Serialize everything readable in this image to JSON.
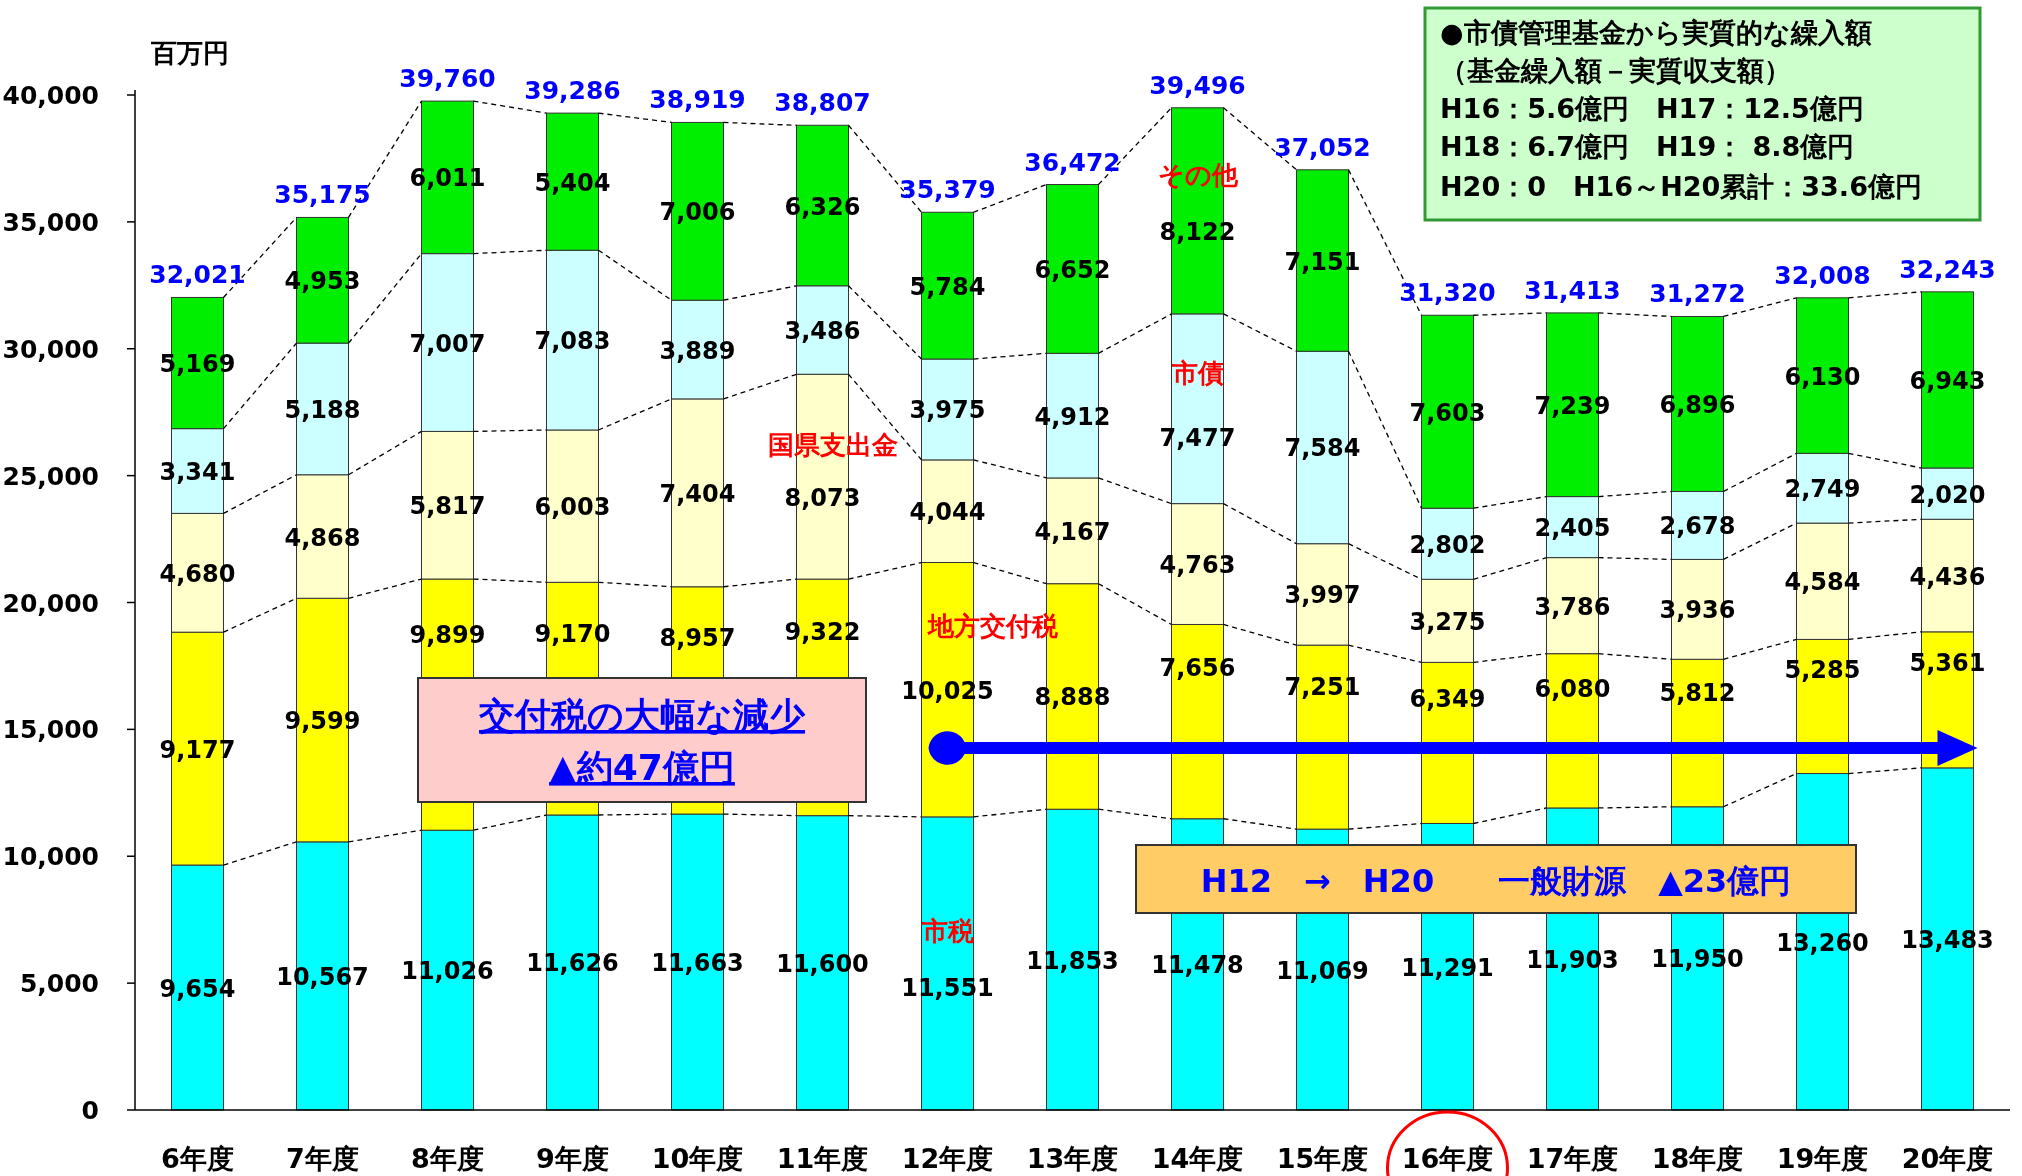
{
  "chart_data": {
    "type": "bar",
    "stacked": true,
    "ylabel": "百万円",
    "categories": [
      "6年度",
      "7年度",
      "8年度",
      "9年度",
      "10年度",
      "11年度",
      "12年度",
      "13年度",
      "14年度",
      "15年度",
      "16年度",
      "17年度",
      "18年度",
      "19年度",
      "20年度"
    ],
    "ylim": [
      0,
      40000
    ],
    "yticks": [
      0,
      {
        "value": 5000,
        "label": "5,000"
      },
      {
        "value": 10000,
        "label": "10,000"
      },
      {
        "value": 15000,
        "label": "15,000"
      },
      {
        "value": 20000,
        "label": "20,000"
      },
      {
        "value": 25000,
        "label": "25,000"
      },
      {
        "value": 30000,
        "label": "30,000"
      },
      {
        "value": 35000,
        "label": "35,000"
      },
      {
        "value": 40000,
        "label": "40,000"
      }
    ],
    "series": [
      {
        "name": "市税",
        "color": "#00ffff",
        "values": [
          9654,
          10567,
          11026,
          11626,
          11663,
          11600,
          11551,
          11853,
          11478,
          11069,
          11291,
          11903,
          11950,
          13260,
          13483
        ],
        "value_labels": [
          "9,654",
          "10,567",
          "11,026",
          "11,626",
          "11,663",
          "11,600",
          "11,551",
          "11,853",
          "11,478",
          "11,069",
          "11,291",
          "11,903",
          "11,950",
          "13,260",
          "13,483"
        ]
      },
      {
        "name": "地方交付税",
        "color": "#ffff00",
        "values": [
          9177,
          9599,
          9899,
          9170,
          8957,
          9322,
          10025,
          8888,
          7656,
          7251,
          6349,
          6080,
          5812,
          5285,
          5361
        ],
        "value_labels": [
          "9,177",
          "9,599",
          "9,899",
          "9,170",
          "8,957",
          "9,322",
          "10,025",
          "8,888",
          "7,656",
          "7,251",
          "6,349",
          "6,080",
          "5,812",
          "5,285",
          "5,361"
        ]
      },
      {
        "name": "国県支出金",
        "color": "#ffffcc",
        "values": [
          4680,
          4868,
          5817,
          6003,
          7404,
          8073,
          4044,
          4167,
          4763,
          3997,
          3275,
          3786,
          3936,
          4584,
          4436
        ],
        "value_labels": [
          "4,680",
          "4,868",
          "5,817",
          "6,003",
          "7,404",
          "8,073",
          "4,044",
          "4,167",
          "4,763",
          "3,997",
          "3,275",
          "3,786",
          "3,936",
          "4,584",
          "4,436"
        ]
      },
      {
        "name": "市債",
        "color": "#ccffff",
        "values": [
          3341,
          5188,
          7007,
          7083,
          3889,
          3486,
          3975,
          4912,
          7477,
          7584,
          2802,
          2405,
          2678,
          2749,
          2020
        ],
        "value_labels": [
          "3,341",
          "5,188",
          "7,007",
          "7,083",
          "3,889",
          "3,486",
          "3,975",
          "4,912",
          "7,477",
          "7,584",
          "2,802",
          "2,405",
          "2,678",
          "2,749",
          "2,020"
        ]
      },
      {
        "name": "その他",
        "color": "#00ee00",
        "values": [
          5169,
          4953,
          6011,
          5404,
          7006,
          6326,
          5784,
          6652,
          8122,
          7151,
          7603,
          7239,
          6896,
          6130,
          6943
        ],
        "value_labels": [
          "5,169",
          "4,953",
          "6,011",
          "5,404",
          "7,006",
          "6,326",
          "5,784",
          "6,652",
          "8,122",
          "7,151",
          "7,603",
          "7,239",
          "6,896",
          "6,130",
          "6,943"
        ]
      }
    ],
    "totals": [
      "32,021",
      "35,175",
      "39,760",
      "39,286",
      "38,919",
      "38,807",
      "35,379",
      "36,472",
      "39,496",
      "37,052",
      "31,320",
      "31,413",
      "31,272",
      "32,008",
      "32,243"
    ],
    "annotations": [
      "交付税の大幅な減少",
      "▲約47億円",
      "H12　→　H20　　一般財源　▲23億円",
      "●市債管理基金から実質的な繰入額",
      "（基金繰入額－実質収支額）",
      "H16：5.6億円　H17：12.5億円",
      "H18：6.7億円　H19：  8.8億円",
      "H20：0　H16～H20累計：33.6億円"
    ],
    "legend": false,
    "grid": false
  }
}
